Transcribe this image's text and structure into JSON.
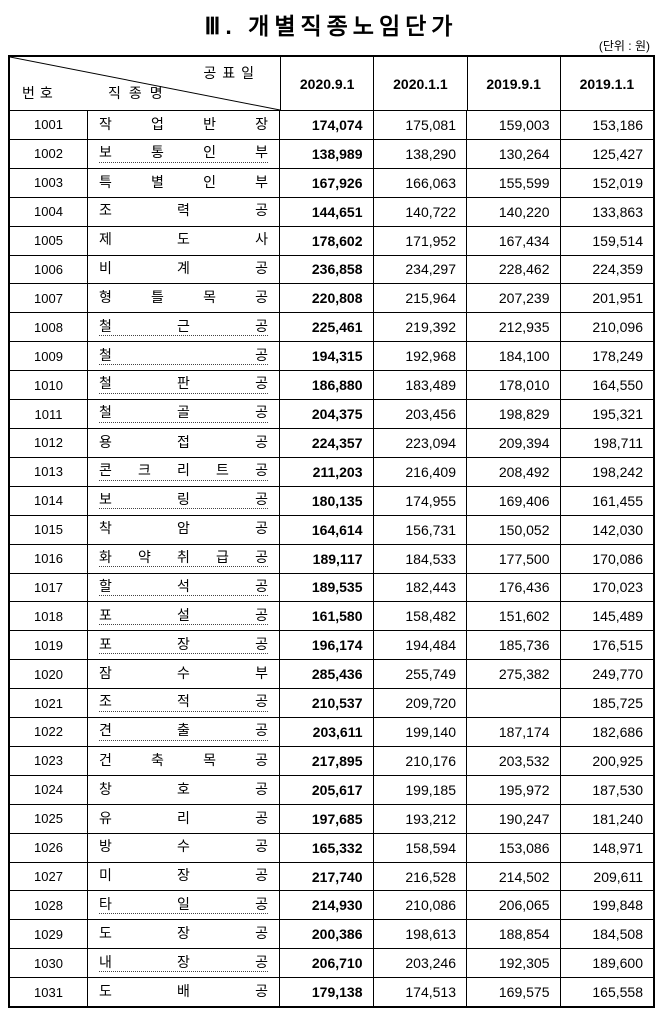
{
  "page": {
    "title": "Ⅲ. 개별직종노임단가",
    "unit_note": "(단위 : 원)"
  },
  "table": {
    "corner": {
      "date_label": "공표일",
      "no_label": "번호",
      "name_label": "직종명"
    },
    "date_columns": [
      "2020.9.1",
      "2020.1.1",
      "2019.9.1",
      "2019.1.1"
    ],
    "rows": [
      {
        "no": "1001",
        "name": "작업반장",
        "dotted": false,
        "values": [
          "174,074",
          "175,081",
          "159,003",
          "153,186"
        ]
      },
      {
        "no": "1002",
        "name": "보통인부",
        "dotted": true,
        "values": [
          "138,989",
          "138,290",
          "130,264",
          "125,427"
        ]
      },
      {
        "no": "1003",
        "name": "특별인부",
        "dotted": false,
        "values": [
          "167,926",
          "166,063",
          "155,599",
          "152,019"
        ]
      },
      {
        "no": "1004",
        "name": "조력공",
        "dotted": false,
        "values": [
          "144,651",
          "140,722",
          "140,220",
          "133,863"
        ]
      },
      {
        "no": "1005",
        "name": "제도사",
        "dotted": false,
        "values": [
          "178,602",
          "171,952",
          "167,434",
          "159,514"
        ]
      },
      {
        "no": "1006",
        "name": "비계공",
        "dotted": false,
        "values": [
          "236,858",
          "234,297",
          "228,462",
          "224,359"
        ]
      },
      {
        "no": "1007",
        "name": "형틀목공",
        "dotted": false,
        "values": [
          "220,808",
          "215,964",
          "207,239",
          "201,951"
        ]
      },
      {
        "no": "1008",
        "name": "철근공",
        "dotted": true,
        "values": [
          "225,461",
          "219,392",
          "212,935",
          "210,096"
        ]
      },
      {
        "no": "1009",
        "name": "철공",
        "dotted": true,
        "values": [
          "194,315",
          "192,968",
          "184,100",
          "178,249"
        ]
      },
      {
        "no": "1010",
        "name": "철판공",
        "dotted": true,
        "values": [
          "186,880",
          "183,489",
          "178,010",
          "164,550"
        ]
      },
      {
        "no": "1011",
        "name": "철골공",
        "dotted": true,
        "values": [
          "204,375",
          "203,456",
          "198,829",
          "195,321"
        ]
      },
      {
        "no": "1012",
        "name": "용접공",
        "dotted": false,
        "values": [
          "224,357",
          "223,094",
          "209,394",
          "198,711"
        ]
      },
      {
        "no": "1013",
        "name": "콘크리트공",
        "dotted": true,
        "values": [
          "211,203",
          "216,409",
          "208,492",
          "198,242"
        ]
      },
      {
        "no": "1014",
        "name": "보링공",
        "dotted": true,
        "values": [
          "180,135",
          "174,955",
          "169,406",
          "161,455"
        ]
      },
      {
        "no": "1015",
        "name": "착암공",
        "dotted": false,
        "values": [
          "164,614",
          "156,731",
          "150,052",
          "142,030"
        ]
      },
      {
        "no": "1016",
        "name": "화약취급공",
        "dotted": true,
        "values": [
          "189,117",
          "184,533",
          "177,500",
          "170,086"
        ]
      },
      {
        "no": "1017",
        "name": "할석공",
        "dotted": true,
        "values": [
          "189,535",
          "182,443",
          "176,436",
          "170,023"
        ]
      },
      {
        "no": "1018",
        "name": "포설공",
        "dotted": true,
        "values": [
          "161,580",
          "158,482",
          "151,602",
          "145,489"
        ]
      },
      {
        "no": "1019",
        "name": "포장공",
        "dotted": true,
        "values": [
          "196,174",
          "194,484",
          "185,736",
          "176,515"
        ]
      },
      {
        "no": "1020",
        "name": "잠수부",
        "dotted": false,
        "values": [
          "285,436",
          "255,749",
          "275,382",
          "249,770"
        ]
      },
      {
        "no": "1021",
        "name": "조적공",
        "dotted": true,
        "values": [
          "210,537",
          "209,720",
          "",
          "185,725"
        ]
      },
      {
        "no": "1022",
        "name": "견출공",
        "dotted": true,
        "values": [
          "203,611",
          "199,140",
          "187,174",
          "182,686"
        ]
      },
      {
        "no": "1023",
        "name": "건축목공",
        "dotted": false,
        "values": [
          "217,895",
          "210,176",
          "203,532",
          "200,925"
        ]
      },
      {
        "no": "1024",
        "name": "창호공",
        "dotted": false,
        "values": [
          "205,617",
          "199,185",
          "195,972",
          "187,530"
        ]
      },
      {
        "no": "1025",
        "name": "유리공",
        "dotted": false,
        "values": [
          "197,685",
          "193,212",
          "190,247",
          "181,240"
        ]
      },
      {
        "no": "1026",
        "name": "방수공",
        "dotted": false,
        "values": [
          "165,332",
          "158,594",
          "153,086",
          "148,971"
        ]
      },
      {
        "no": "1027",
        "name": "미장공",
        "dotted": false,
        "values": [
          "217,740",
          "216,528",
          "214,502",
          "209,611"
        ]
      },
      {
        "no": "1028",
        "name": "타일공",
        "dotted": true,
        "values": [
          "214,930",
          "210,086",
          "206,065",
          "199,848"
        ]
      },
      {
        "no": "1029",
        "name": "도장공",
        "dotted": false,
        "values": [
          "200,386",
          "198,613",
          "188,854",
          "184,508"
        ]
      },
      {
        "no": "1030",
        "name": "내장공",
        "dotted": true,
        "values": [
          "206,710",
          "203,246",
          "192,305",
          "189,600"
        ]
      },
      {
        "no": "1031",
        "name": "도배공",
        "dotted": false,
        "values": [
          "179,138",
          "174,513",
          "169,575",
          "165,558"
        ]
      }
    ]
  }
}
